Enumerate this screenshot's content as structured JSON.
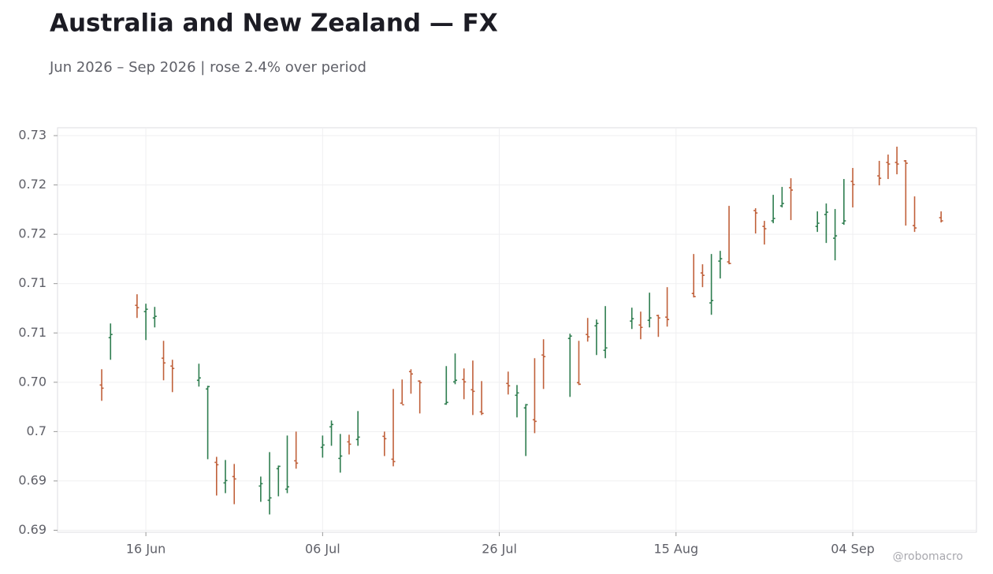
{
  "chart_data": {
    "type": "ohlc",
    "title": "Australia and New Zealand — FX",
    "subtitle": "Jun 2026 – Sep 2026 | rose 2.4% over period",
    "watermark": "@robomacro",
    "up_color": "#2e7d4f",
    "down_color": "#c0603a",
    "grid": true,
    "xlim": [
      "2026-06-06",
      "2026-09-18"
    ],
    "xticks": [
      {
        "value": "2026-06-16",
        "label": "16 Jun"
      },
      {
        "value": "2026-07-06",
        "label": "06 Jul"
      },
      {
        "value": "2026-07-26",
        "label": "26 Jul"
      },
      {
        "value": "2026-08-15",
        "label": "15 Aug"
      },
      {
        "value": "2026-09-04",
        "label": "04 Sep"
      }
    ],
    "ylim": [
      0.6898,
      0.7308
    ],
    "yticks": [
      0.69,
      {
        "value": 0.695,
        "label": "0.69"
      },
      0.7,
      {
        "value": 0.705,
        "label": "0.70"
      },
      0.71,
      {
        "value": 0.715,
        "label": "0.71"
      },
      0.72,
      {
        "value": 0.725,
        "label": "0.72"
      },
      0.73
    ],
    "x": [
      "2026-06-11",
      "2026-06-12",
      "2026-06-15",
      "2026-06-16",
      "2026-06-17",
      "2026-06-18",
      "2026-06-19",
      "2026-06-22",
      "2026-06-23",
      "2026-06-24",
      "2026-06-25",
      "2026-06-26",
      "2026-06-29",
      "2026-06-30",
      "2026-07-01",
      "2026-07-02",
      "2026-07-03",
      "2026-07-06",
      "2026-07-07",
      "2026-07-08",
      "2026-07-09",
      "2026-07-10",
      "2026-07-13",
      "2026-07-14",
      "2026-07-15",
      "2026-07-16",
      "2026-07-17",
      "2026-07-20",
      "2026-07-21",
      "2026-07-22",
      "2026-07-23",
      "2026-07-24",
      "2026-07-27",
      "2026-07-28",
      "2026-07-29",
      "2026-07-30",
      "2026-07-31",
      "2026-08-03",
      "2026-08-04",
      "2026-08-05",
      "2026-08-06",
      "2026-08-07",
      "2026-08-10",
      "2026-08-11",
      "2026-08-12",
      "2026-08-13",
      "2026-08-14",
      "2026-08-17",
      "2026-08-18",
      "2026-08-19",
      "2026-08-20",
      "2026-08-21",
      "2026-08-24",
      "2026-08-25",
      "2026-08-26",
      "2026-08-27",
      "2026-08-28",
      "2026-08-31",
      "2026-09-01",
      "2026-09-02",
      "2026-09-03",
      "2026-09-04",
      "2026-09-07",
      "2026-09-08",
      "2026-09-09",
      "2026-09-10",
      "2026-09-11",
      "2026-09-14"
    ],
    "open": [
      0.70472,
      0.70952,
      0.7128,
      0.71216,
      0.71152,
      0.70744,
      0.70664,
      0.7052,
      0.70432,
      0.69688,
      0.6948,
      0.69544,
      0.69448,
      0.69304,
      0.69624,
      0.69416,
      0.69704,
      0.6984,
      0.70048,
      0.69728,
      0.69896,
      0.6992,
      0.69952,
      0.6972,
      0.70288,
      0.70608,
      0.70512,
      0.7028,
      0.70504,
      0.70528,
      0.70424,
      0.702,
      0.70488,
      0.70368,
      0.7024,
      0.7012,
      0.70776,
      0.70944,
      0.70496,
      0.70984,
      0.71072,
      0.70824,
      0.7112,
      0.7108,
      0.71128,
      0.71176,
      0.7116,
      0.714,
      0.71608,
      0.71304,
      0.71728,
      0.7172,
      0.7224,
      0.7208,
      0.72136,
      0.72288,
      0.72472,
      0.7208,
      0.722,
      0.7196,
      0.72112,
      0.72536,
      0.72592,
      0.72728,
      0.72728,
      0.72744,
      0.72088,
      0.72168
    ],
    "high": [
      0.70632,
      0.71096,
      0.71392,
      0.71296,
      0.71264,
      0.7092,
      0.70728,
      0.70688,
      0.70464,
      0.69744,
      0.69712,
      0.69672,
      0.69544,
      0.69792,
      0.69656,
      0.6996,
      0.7,
      0.6996,
      0.70112,
      0.69976,
      0.69968,
      0.70208,
      0.7,
      0.70432,
      0.70528,
      0.70632,
      0.7052,
      0.70664,
      0.70792,
      0.7064,
      0.7072,
      0.70512,
      0.70608,
      0.70472,
      0.7028,
      0.70744,
      0.70936,
      0.70992,
      0.7092,
      0.71152,
      0.71136,
      0.71272,
      0.71256,
      0.71216,
      0.71408,
      0.71184,
      0.71464,
      0.718,
      0.71696,
      0.718,
      0.71832,
      0.72288,
      0.72264,
      0.72136,
      0.724,
      0.7248,
      0.72568,
      0.72232,
      0.72312,
      0.72256,
      0.7256,
      0.72672,
      0.72744,
      0.72808,
      0.72888,
      0.72752,
      0.72384,
      0.72232
    ],
    "low": [
      0.70312,
      0.70728,
      0.71152,
      0.70928,
      0.71056,
      0.7052,
      0.704,
      0.70456,
      0.6972,
      0.69352,
      0.69376,
      0.69264,
      0.69288,
      0.6916,
      0.69344,
      0.69376,
      0.69624,
      0.69736,
      0.69856,
      0.69584,
      0.69768,
      0.69856,
      0.69752,
      0.69648,
      0.7028,
      0.70384,
      0.70184,
      0.70272,
      0.7048,
      0.70328,
      0.70168,
      0.70168,
      0.70376,
      0.70144,
      0.69752,
      0.69984,
      0.70432,
      0.70352,
      0.70472,
      0.70912,
      0.70776,
      0.70744,
      0.7104,
      0.70936,
      0.71056,
      0.7096,
      0.71064,
      0.7136,
      0.71464,
      0.71184,
      0.71552,
      0.71696,
      0.72008,
      0.71896,
      0.72112,
      0.72272,
      0.72144,
      0.72024,
      0.71912,
      0.71736,
      0.72096,
      0.72272,
      0.72496,
      0.7256,
      0.72608,
      0.72088,
      0.72024,
      0.7212
    ],
    "close": [
      0.7044,
      0.70984,
      0.71256,
      0.7124,
      0.71168,
      0.70696,
      0.7064,
      0.70544,
      0.70456,
      0.69664,
      0.69504,
      0.6952,
      0.69472,
      0.69328,
      0.69648,
      0.6944,
      0.6968,
      0.69864,
      0.70072,
      0.69752,
      0.69872,
      0.69944,
      0.69928,
      0.69696,
      0.70272,
      0.70584,
      0.70496,
      0.70296,
      0.7052,
      0.70504,
      0.70408,
      0.70184,
      0.70464,
      0.70392,
      0.70272,
      0.70104,
      0.7076,
      0.70968,
      0.7048,
      0.7096,
      0.71096,
      0.70848,
      0.71144,
      0.71056,
      0.71152,
      0.71152,
      0.71136,
      0.71368,
      0.71584,
      0.71328,
      0.71752,
      0.71704,
      0.72216,
      0.72056,
      0.7216,
      0.72312,
      0.72448,
      0.72112,
      0.72224,
      0.71984,
      0.72136,
      0.72504,
      0.72568,
      0.72712,
      0.72712,
      0.7272,
      0.72064,
      0.72136
    ]
  }
}
